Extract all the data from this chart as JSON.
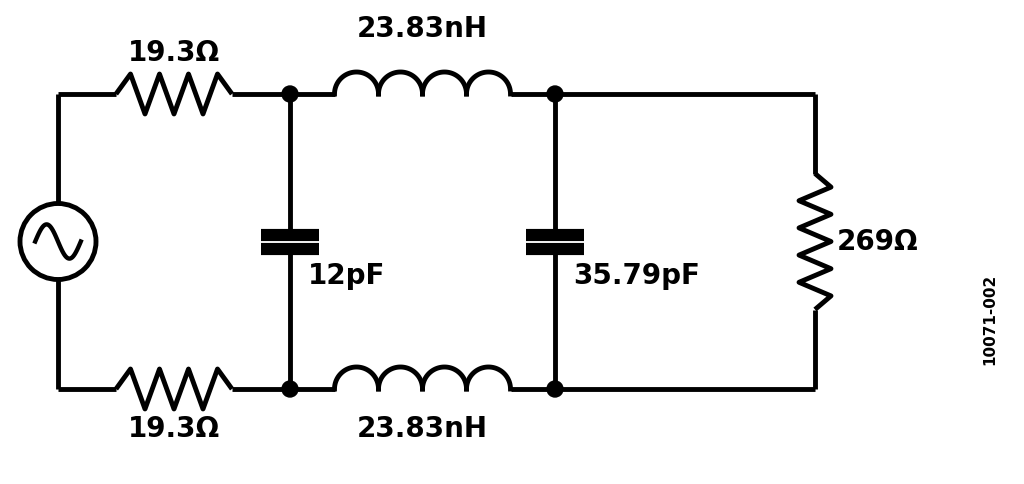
{
  "watermark": "10071-002",
  "components": {
    "R_top": "19.3Ω",
    "R_bot": "19.3Ω",
    "L_top": "23.83nH",
    "L_bot": "23.83nH",
    "C1": "12pF",
    "C2": "35.79pF",
    "R_load": "269Ω"
  },
  "lw": 3.5,
  "fg": "#000000",
  "bg": "#ffffff",
  "fs": 20
}
